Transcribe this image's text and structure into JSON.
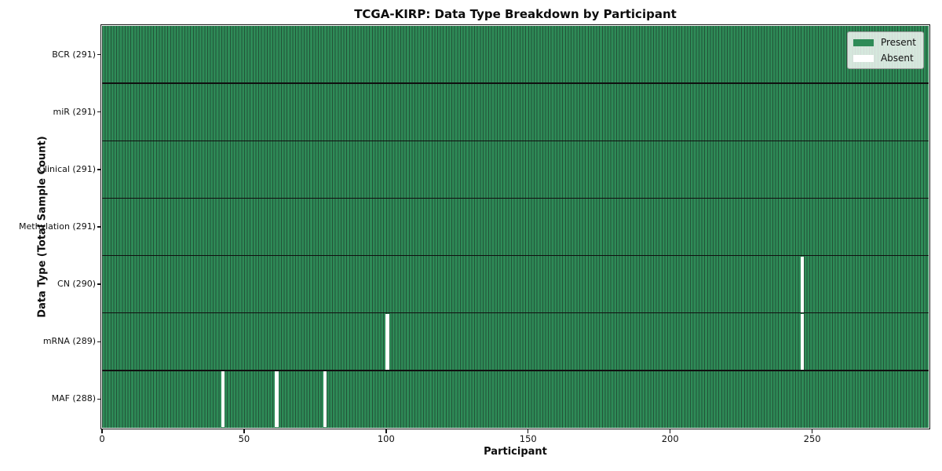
{
  "chart_data": {
    "type": "heatmap",
    "title": "TCGA-KIRP: Data Type Breakdown by Participant",
    "xlabel": "Participant",
    "ylabel": "Data Type (Total Sample Count)",
    "x_range": [
      0,
      291
    ],
    "x_ticks": [
      0,
      50,
      100,
      150,
      200,
      250
    ],
    "n_participants": 291,
    "grid": false,
    "legend_position": "upper right",
    "colors": {
      "present": "#2e8b57",
      "absent": "#ffffff",
      "bar_edge": "#225338",
      "row_separator": "#101010"
    },
    "legend": [
      {
        "label": "Present",
        "color": "#2e8b57"
      },
      {
        "label": "Absent",
        "color": "#ffffff"
      }
    ],
    "rows": [
      {
        "label": "BCR (291)",
        "data_type": "BCR",
        "total_samples": 291,
        "absent_participants": []
      },
      {
        "label": "miR (291)",
        "data_type": "miR",
        "total_samples": 291,
        "absent_participants": []
      },
      {
        "label": "Clinical (291)",
        "data_type": "Clinical",
        "total_samples": 291,
        "absent_participants": []
      },
      {
        "label": "Methylation (291)",
        "data_type": "Methylation",
        "total_samples": 291,
        "absent_participants": []
      },
      {
        "label": "CN (290)",
        "data_type": "CN",
        "total_samples": 290,
        "absent_participants": [
          246
        ]
      },
      {
        "label": "mRNA (289)",
        "data_type": "mRNA",
        "total_samples": 289,
        "absent_participants": [
          100,
          246
        ]
      },
      {
        "label": "MAF (288)",
        "data_type": "MAF",
        "total_samples": 288,
        "absent_participants": [
          42,
          61,
          78
        ]
      }
    ]
  }
}
